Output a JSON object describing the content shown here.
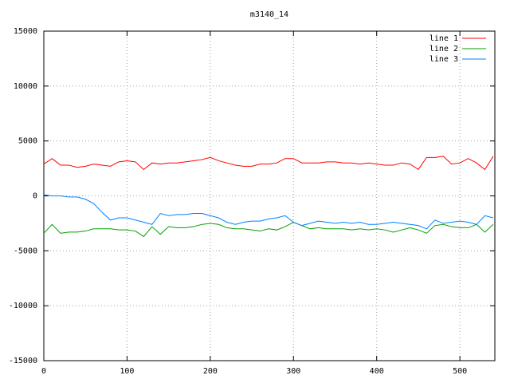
{
  "chart_data": {
    "type": "line",
    "title": "m3140_14",
    "x": [
      0,
      10,
      20,
      30,
      40,
      50,
      60,
      70,
      80,
      90,
      100,
      110,
      120,
      130,
      140,
      150,
      160,
      170,
      180,
      190,
      200,
      210,
      220,
      230,
      240,
      250,
      260,
      270,
      280,
      290,
      300,
      310,
      320,
      330,
      340,
      350,
      360,
      370,
      380,
      390,
      400,
      410,
      420,
      430,
      440,
      450,
      460,
      470,
      480,
      490,
      500,
      510,
      520,
      530,
      540
    ],
    "series": [
      {
        "name": "line 1",
        "color": "#ff0000",
        "values": [
          2900,
          3400,
          2800,
          2800,
          2600,
          2700,
          2900,
          2800,
          2700,
          3100,
          3200,
          3100,
          2400,
          3000,
          2900,
          3000,
          3000,
          3100,
          3200,
          3300,
          3500,
          3200,
          3000,
          2800,
          2700,
          2700,
          2900,
          2900,
          3000,
          3400,
          3400,
          3000,
          3000,
          3000,
          3100,
          3100,
          3000,
          3000,
          2900,
          3000,
          2900,
          2800,
          2800,
          3000,
          2900,
          2400,
          3500,
          3500,
          3600,
          2900,
          3000,
          3400,
          3000,
          2400,
          3600
        ]
      },
      {
        "name": "line 2",
        "color": "#00a000",
        "values": [
          -3400,
          -2600,
          -3400,
          -3300,
          -3300,
          -3200,
          -3000,
          -3000,
          -3000,
          -3100,
          -3100,
          -3200,
          -3700,
          -2800,
          -3500,
          -2800,
          -2900,
          -2900,
          -2800,
          -2600,
          -2500,
          -2600,
          -2900,
          -3000,
          -3000,
          -3100,
          -3200,
          -3000,
          -3100,
          -2800,
          -2400,
          -2700,
          -3000,
          -2900,
          -3000,
          -3000,
          -3000,
          -3100,
          -3000,
          -3100,
          -3000,
          -3100,
          -3300,
          -3100,
          -2900,
          -3100,
          -3400,
          -2700,
          -2600,
          -2800,
          -2900,
          -2900,
          -2600,
          -3300,
          -2600
        ]
      },
      {
        "name": "line 3",
        "color": "#0080ff",
        "values": [
          100,
          0,
          0,
          -100,
          -100,
          -300,
          -700,
          -1500,
          -2200,
          -2000,
          -2000,
          -2200,
          -2400,
          -2600,
          -1600,
          -1800,
          -1700,
          -1700,
          -1600,
          -1600,
          -1800,
          -2000,
          -2400,
          -2600,
          -2400,
          -2300,
          -2300,
          -2100,
          -2000,
          -1800,
          -2400,
          -2700,
          -2500,
          -2300,
          -2400,
          -2500,
          -2400,
          -2500,
          -2400,
          -2600,
          -2600,
          -2500,
          -2400,
          -2500,
          -2600,
          -2700,
          -3000,
          -2200,
          -2500,
          -2400,
          -2300,
          -2400,
          -2600,
          -1800,
          -2000
        ]
      }
    ],
    "xlim": [
      0,
      542
    ],
    "ylim": [
      -15000,
      15000
    ],
    "xticks": [
      0,
      100,
      200,
      300,
      400,
      500
    ],
    "yticks": [
      -15000,
      -10000,
      -5000,
      0,
      5000,
      10000,
      15000
    ],
    "grid": true,
    "legend": "top-right"
  }
}
